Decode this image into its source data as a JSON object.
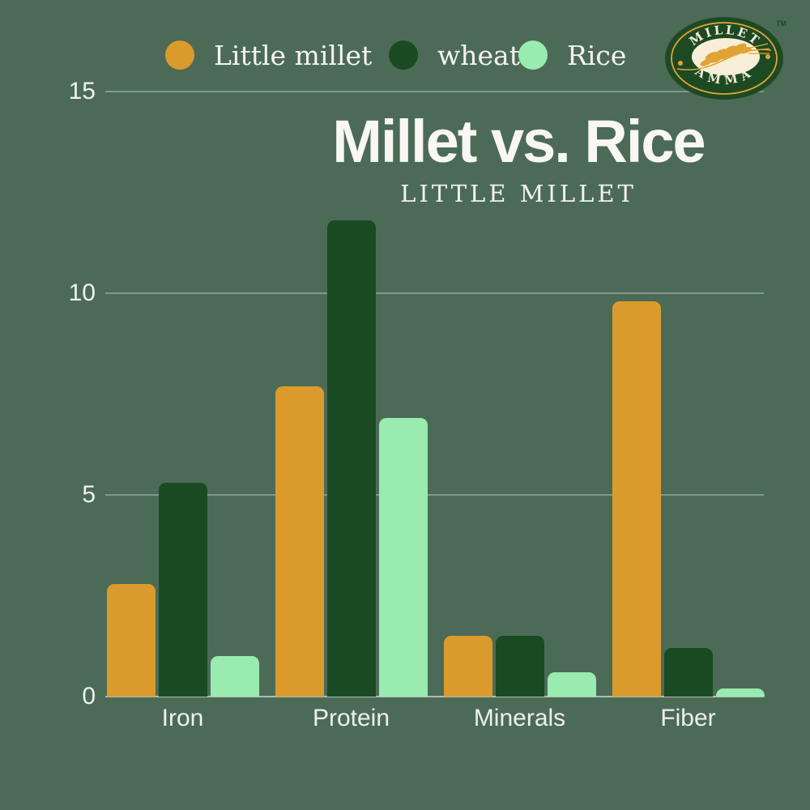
{
  "page": {
    "background": "#4c6b57"
  },
  "legend": {
    "items": [
      {
        "label": "Little millet",
        "color": "#db9b2c"
      },
      {
        "label": "wheat",
        "color": "#1a4a21"
      },
      {
        "label": "Rice",
        "color": "#99ebb0"
      }
    ]
  },
  "logo": {
    "line1": "MILLET",
    "line2": "AMMA",
    "tm": "TM",
    "colors": {
      "badge_green": "#1d4a23",
      "ring_orange": "#e2a336",
      "cream": "#f7efd5"
    }
  },
  "header": {
    "title": "Millet vs. Rice",
    "subtitle": "LITTLE MILLET"
  },
  "chart_data": {
    "type": "bar",
    "title": "Millet vs. Rice",
    "subtitle": "LITTLE MILLET",
    "categories": [
      "Iron",
      "Protein",
      "Minerals",
      "Fiber"
    ],
    "series": [
      {
        "name": "Little millet",
        "color": "#db9b2c",
        "values": [
          2.8,
          7.7,
          1.5,
          9.8
        ]
      },
      {
        "name": "wheat",
        "color": "#1a4a21",
        "values": [
          5.3,
          11.8,
          1.5,
          1.2
        ]
      },
      {
        "name": "Rice",
        "color": "#99ebb0",
        "values": [
          1.0,
          6.9,
          0.6,
          0.2
        ]
      }
    ],
    "xlabel": "",
    "ylabel": "",
    "ylim": [
      0,
      15
    ],
    "yticks": [
      0,
      5,
      10,
      15
    ],
    "grid": true,
    "legend_position": "top",
    "background": "#4c6b57",
    "text_color": "#f5f4ec"
  }
}
